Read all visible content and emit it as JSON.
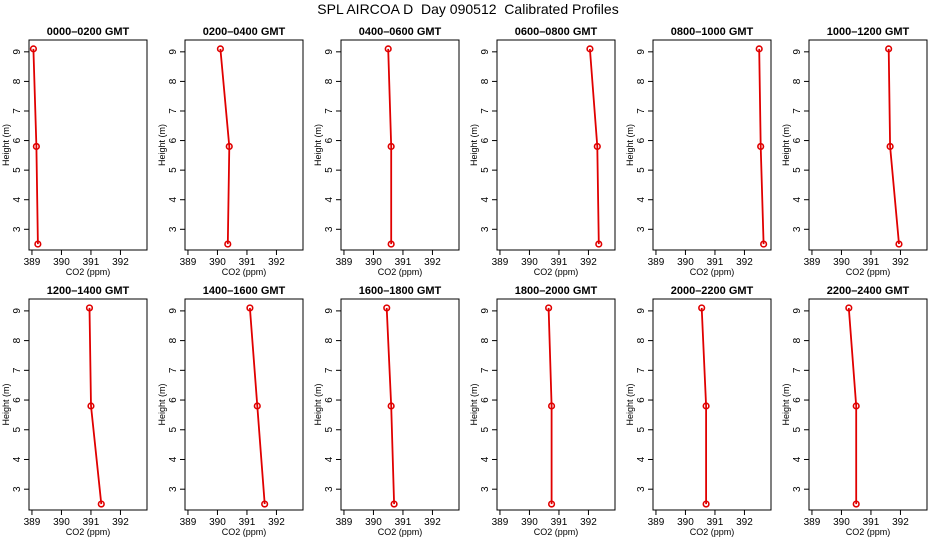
{
  "page": {
    "title": "SPL AIRCOA D  Day 090512  Calibrated Profiles"
  },
  "colors": {
    "series": "#e00000",
    "axis": "#000000"
  },
  "chart_data": [
    {
      "type": "line",
      "title": "0000–0200 GMT",
      "xlabel": "CO2 (ppm)",
      "ylabel": "Height (m)",
      "xlim": [
        388.9,
        392.9
      ],
      "ylim": [
        2.3,
        9.4
      ],
      "xticks": [
        "389",
        "390",
        "391",
        "392"
      ],
      "yticks": [
        "3",
        "4",
        "5",
        "6",
        "7",
        "8",
        "9"
      ],
      "points": [
        {
          "x": 389.05,
          "y": 9.1
        },
        {
          "x": 389.15,
          "y": 5.8
        },
        {
          "x": 389.2,
          "y": 2.5
        }
      ]
    },
    {
      "type": "line",
      "title": "0200–0400 GMT",
      "xlabel": "CO2 (ppm)",
      "ylabel": "Height (m)",
      "xlim": [
        388.9,
        392.9
      ],
      "ylim": [
        2.3,
        9.4
      ],
      "xticks": [
        "389",
        "390",
        "391",
        "392"
      ],
      "yticks": [
        "3",
        "4",
        "5",
        "6",
        "7",
        "8",
        "9"
      ],
      "points": [
        {
          "x": 390.1,
          "y": 9.1
        },
        {
          "x": 390.4,
          "y": 5.8
        },
        {
          "x": 390.35,
          "y": 2.5
        }
      ]
    },
    {
      "type": "line",
      "title": "0400–0600 GMT",
      "xlabel": "CO2 (ppm)",
      "ylabel": "Height (m)",
      "xlim": [
        388.9,
        392.9
      ],
      "ylim": [
        2.3,
        9.4
      ],
      "xticks": [
        "389",
        "390",
        "391",
        "392"
      ],
      "yticks": [
        "3",
        "4",
        "5",
        "6",
        "7",
        "8",
        "9"
      ],
      "points": [
        {
          "x": 390.5,
          "y": 9.1
        },
        {
          "x": 390.6,
          "y": 5.8
        },
        {
          "x": 390.6,
          "y": 2.5
        }
      ]
    },
    {
      "type": "line",
      "title": "0600–0800 GMT",
      "xlabel": "CO2 (ppm)",
      "ylabel": "Height (m)",
      "xlim": [
        388.9,
        392.9
      ],
      "ylim": [
        2.3,
        9.4
      ],
      "xticks": [
        "389",
        "390",
        "391",
        "392"
      ],
      "yticks": [
        "3",
        "4",
        "5",
        "6",
        "7",
        "8",
        "9"
      ],
      "points": [
        {
          "x": 392.05,
          "y": 9.1
        },
        {
          "x": 392.3,
          "y": 5.8
        },
        {
          "x": 392.35,
          "y": 2.5
        }
      ]
    },
    {
      "type": "line",
      "title": "0800–1000 GMT",
      "xlabel": "CO2 (ppm)",
      "ylabel": "Height (m)",
      "xlim": [
        388.9,
        392.9
      ],
      "ylim": [
        2.3,
        9.4
      ],
      "xticks": [
        "389",
        "390",
        "391",
        "392"
      ],
      "yticks": [
        "3",
        "4",
        "5",
        "6",
        "7",
        "8",
        "9"
      ],
      "points": [
        {
          "x": 392.5,
          "y": 9.1
        },
        {
          "x": 392.55,
          "y": 5.8
        },
        {
          "x": 392.65,
          "y": 2.5
        }
      ]
    },
    {
      "type": "line",
      "title": "1000–1200 GMT",
      "xlabel": "CO2 (ppm)",
      "ylabel": "Height (m)",
      "xlim": [
        388.9,
        392.9
      ],
      "ylim": [
        2.3,
        9.4
      ],
      "xticks": [
        "389",
        "390",
        "391",
        "392"
      ],
      "yticks": [
        "3",
        "4",
        "5",
        "6",
        "7",
        "8",
        "9"
      ],
      "points": [
        {
          "x": 391.6,
          "y": 9.1
        },
        {
          "x": 391.65,
          "y": 5.8
        },
        {
          "x": 391.95,
          "y": 2.5
        }
      ]
    },
    {
      "type": "line",
      "title": "1200–1400 GMT",
      "xlabel": "CO2 (ppm)",
      "ylabel": "Height (m)",
      "xlim": [
        388.9,
        392.9
      ],
      "ylim": [
        2.3,
        9.4
      ],
      "xticks": [
        "389",
        "390",
        "391",
        "392"
      ],
      "yticks": [
        "3",
        "4",
        "5",
        "6",
        "7",
        "8",
        "9"
      ],
      "points": [
        {
          "x": 390.95,
          "y": 9.1
        },
        {
          "x": 391.0,
          "y": 5.8
        },
        {
          "x": 391.35,
          "y": 2.5
        }
      ]
    },
    {
      "type": "line",
      "title": "1400–1600 GMT",
      "xlabel": "CO2 (ppm)",
      "ylabel": "Height (m)",
      "xlim": [
        388.9,
        392.9
      ],
      "ylim": [
        2.3,
        9.4
      ],
      "xticks": [
        "389",
        "390",
        "391",
        "392"
      ],
      "yticks": [
        "3",
        "4",
        "5",
        "6",
        "7",
        "8",
        "9"
      ],
      "points": [
        {
          "x": 391.1,
          "y": 9.1
        },
        {
          "x": 391.35,
          "y": 5.8
        },
        {
          "x": 391.6,
          "y": 2.5
        }
      ]
    },
    {
      "type": "line",
      "title": "1600–1800 GMT",
      "xlabel": "CO2 (ppm)",
      "ylabel": "Height (m)",
      "xlim": [
        388.9,
        392.9
      ],
      "ylim": [
        2.3,
        9.4
      ],
      "xticks": [
        "389",
        "390",
        "391",
        "392"
      ],
      "yticks": [
        "3",
        "4",
        "5",
        "6",
        "7",
        "8",
        "9"
      ],
      "points": [
        {
          "x": 390.45,
          "y": 9.1
        },
        {
          "x": 390.6,
          "y": 5.8
        },
        {
          "x": 390.7,
          "y": 2.5
        }
      ]
    },
    {
      "type": "line",
      "title": "1800–2000 GMT",
      "xlabel": "CO2 (ppm)",
      "ylabel": "Height (m)",
      "xlim": [
        388.9,
        392.9
      ],
      "ylim": [
        2.3,
        9.4
      ],
      "xticks": [
        "389",
        "390",
        "391",
        "392"
      ],
      "yticks": [
        "3",
        "4",
        "5",
        "6",
        "7",
        "8",
        "9"
      ],
      "points": [
        {
          "x": 390.65,
          "y": 9.1
        },
        {
          "x": 390.75,
          "y": 5.8
        },
        {
          "x": 390.75,
          "y": 2.5
        }
      ]
    },
    {
      "type": "line",
      "title": "2000–2200 GMT",
      "xlabel": "CO2 (ppm)",
      "ylabel": "Height (m)",
      "xlim": [
        388.9,
        392.9
      ],
      "ylim": [
        2.3,
        9.4
      ],
      "xticks": [
        "389",
        "390",
        "391",
        "392"
      ],
      "yticks": [
        "3",
        "4",
        "5",
        "6",
        "7",
        "8",
        "9"
      ],
      "points": [
        {
          "x": 390.55,
          "y": 9.1
        },
        {
          "x": 390.7,
          "y": 5.8
        },
        {
          "x": 390.7,
          "y": 2.5
        }
      ]
    },
    {
      "type": "line",
      "title": "2200–2400 GMT",
      "xlabel": "CO2 (ppm)",
      "ylabel": "Height (m)",
      "xlim": [
        388.9,
        392.9
      ],
      "ylim": [
        2.3,
        9.4
      ],
      "xticks": [
        "389",
        "390",
        "391",
        "392"
      ],
      "yticks": [
        "3",
        "4",
        "5",
        "6",
        "7",
        "8",
        "9"
      ],
      "points": [
        {
          "x": 390.25,
          "y": 9.1
        },
        {
          "x": 390.5,
          "y": 5.8
        },
        {
          "x": 390.5,
          "y": 2.5
        }
      ]
    }
  ]
}
